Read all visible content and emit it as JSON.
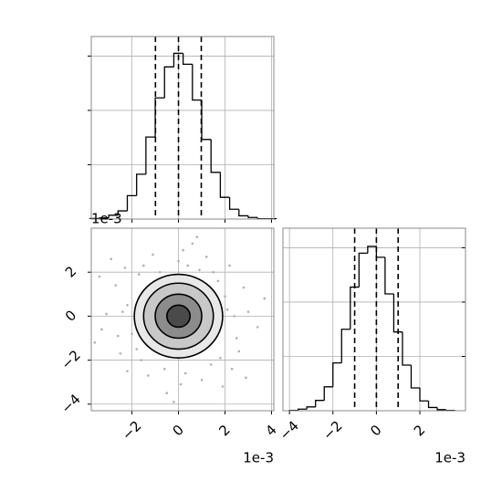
{
  "chart_data": [
    {
      "type": "histogram",
      "bins": [
        -3.8,
        -3.4,
        -3.0,
        -2.6,
        -2.2,
        -1.8,
        -1.4,
        -1.0,
        -0.6,
        -0.2,
        0.2,
        0.6,
        1.0,
        1.4,
        1.8,
        2.2,
        2.6,
        3.0,
        3.4,
        3.8,
        4.2
      ],
      "counts": [
        2,
        4,
        14,
        30,
        86,
        165,
        302,
        446,
        560,
        610,
        570,
        438,
        293,
        172,
        80,
        36,
        12,
        6,
        1,
        1
      ],
      "color": "#000000",
      "quantiles": [
        -0.99,
        0.0,
        0.98
      ],
      "xlim": [
        -3.75,
        4.1
      ],
      "ylim": [
        0,
        672
      ],
      "xticks": [
        -2,
        0,
        2,
        4
      ],
      "yticks": [
        200,
        400,
        600
      ],
      "show_xtick_labels": false,
      "grid": true
    },
    {
      "type": "contour",
      "x": [
        2.1,
        -2.2,
        0.4,
        -0.6,
        2.5,
        -2.6,
        1.5,
        -1.7,
        1.8,
        -1.6,
        3.0,
        -3.1,
        0.2,
        0.1,
        2.8,
        -2.7,
        2.6,
        -2.5,
        1.2,
        -1.1,
        1.0,
        -1.3,
        3.4,
        -3.3,
        0.6,
        -0.5,
        2.2,
        -2.3,
        2.3,
        -2.2,
        2.0,
        -2.0,
        0.9,
        -0.8,
        2.4,
        -2.4,
        0.0,
        0.3,
        1.7,
        -1.8,
        3.7,
        -3.6,
        1.9,
        -2.9,
        -0.2,
        2.9,
        -3.4,
        0.8,
        1.4,
        -1.5
      ],
      "y": [
        0.3,
        0.5,
        2.3,
        -2.4,
        -1.0,
        -0.9,
        2.0,
        1.9,
        -1.9,
        -2.0,
        0.2,
        0.1,
        3.0,
        -3.1,
        1.3,
        1.4,
        -1.6,
        -1.7,
        2.7,
        2.8,
        -2.9,
        -2.7,
        -0.5,
        -0.6,
        3.3,
        -3.5,
        2.3,
        2.2,
        -2.4,
        -2.5,
        0.9,
        -0.8,
        2.1,
        2.0,
        0.0,
        0.2,
        2.5,
        -2.6,
        1.6,
        -1.5,
        0.8,
        -1.2,
        -3.2,
        2.6,
        -3.9,
        -2.8,
        1.8,
        3.6,
        -2.2,
        2.3
      ],
      "point_color": "#b0b0b0",
      "contours": [
        1.9,
        1.5,
        1.0,
        0.5
      ],
      "contour_fills": [
        "#e8e8e8",
        "#c8c8c8",
        "#8c8c8c",
        "#4a4a4a"
      ],
      "xlim": [
        -3.75,
        4.1
      ],
      "ylim": [
        -4.3,
        4.0
      ],
      "xticks": [
        {
          "value": -2,
          "label": "−2"
        },
        0,
        2,
        4
      ],
      "yticks": [
        {
          "value": -4,
          "label": "−4"
        },
        {
          "value": -2,
          "label": "−2"
        },
        0,
        2
      ],
      "x_offset_label": "1e-3",
      "y_offset_label": "1e-3",
      "grid": true
    },
    {
      "type": "histogram",
      "bins": [
        -4.0,
        -3.6,
        -3.2,
        -2.8,
        -2.4,
        -2.0,
        -1.6,
        -1.2,
        -0.8,
        -0.4,
        0.0,
        0.4,
        0.8,
        1.2,
        1.6,
        2.0,
        2.4,
        2.8,
        3.2,
        3.6
      ],
      "counts": [
        1,
        6,
        14,
        38,
        88,
        176,
        300,
        455,
        580,
        605,
        565,
        430,
        290,
        168,
        84,
        36,
        12,
        4,
        1
      ],
      "color": "#000000",
      "quantiles": [
        -1.0,
        0.0,
        1.0
      ],
      "xlim": [
        -4.3,
        4.1
      ],
      "ylim": [
        0,
        672
      ],
      "xticks": [
        {
          "value": -4,
          "label": "−4"
        },
        {
          "value": -2,
          "label": "−2"
        },
        0,
        2
      ],
      "yticks": [
        200,
        400,
        600
      ],
      "show_xtick_labels": true,
      "x_offset_label": "1e-3",
      "grid": true
    }
  ]
}
